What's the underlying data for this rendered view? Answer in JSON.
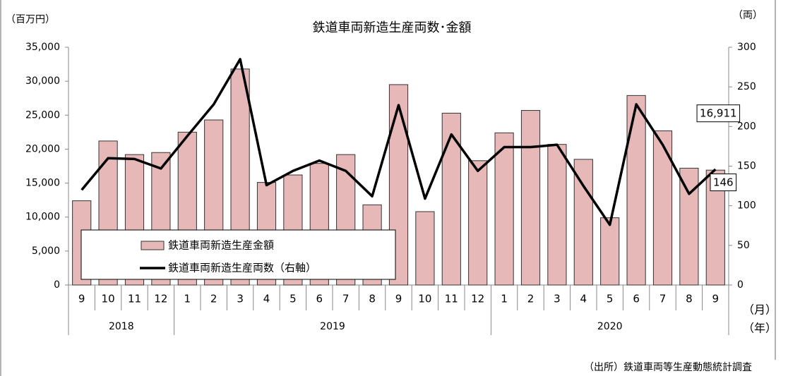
{
  "chart_data": {
    "type": "bar-line",
    "title": "鉄道車両新造生産両数･金額",
    "y_label": "（百万円）",
    "y2_label": "（両）",
    "x_label": "（月）",
    "x_group_label": "（年）",
    "source": "（出所）鉄道車両等生産動態統計調査",
    "categories": [
      "9",
      "10",
      "11",
      "12",
      "1",
      "2",
      "3",
      "4",
      "5",
      "6",
      "7",
      "8",
      "9",
      "10",
      "11",
      "12",
      "1",
      "2",
      "3",
      "4",
      "5",
      "6",
      "7",
      "8",
      "9"
    ],
    "years": [
      "2018",
      "2019",
      "2020"
    ],
    "series": [
      {
        "name": "鉄道車両新造生産金額",
        "type": "bar",
        "color": "#e6b8b7",
        "values": [
          12400,
          21200,
          19200,
          19500,
          22500,
          24300,
          31800,
          15100,
          16200,
          17900,
          19200,
          11800,
          29500,
          10800,
          25300,
          18300,
          22400,
          25700,
          20700,
          18500,
          9900,
          27900,
          22700,
          17200,
          16911
        ],
        "value_labels": [
          null,
          null,
          null,
          null,
          null,
          null,
          null,
          null,
          null,
          null,
          null,
          null,
          null,
          null,
          null,
          null,
          null,
          null,
          null,
          null,
          null,
          null,
          null,
          null,
          "16,911"
        ]
      },
      {
        "name": "鉄道車両新造生産両数（右軸）",
        "type": "line",
        "color": "#000000",
        "axis": "y2",
        "values": [
          120,
          160,
          159,
          147,
          188,
          228,
          285,
          126,
          144,
          157,
          144,
          112,
          227,
          109,
          190,
          144,
          174,
          174,
          177,
          125,
          76,
          228,
          177,
          115,
          146
        ],
        "value_labels": [
          null,
          null,
          null,
          null,
          null,
          null,
          null,
          null,
          null,
          null,
          null,
          null,
          null,
          null,
          null,
          null,
          null,
          null,
          null,
          null,
          null,
          null,
          null,
          null,
          "146"
        ]
      }
    ],
    "ylim": [
      0,
      35000
    ],
    "yticks": [
      0,
      {
        "value": 5000,
        "label": "5,000"
      },
      {
        "value": 10000,
        "label": "10,000"
      },
      {
        "value": 15000,
        "label": "15,000"
      },
      {
        "value": 20000,
        "label": "20,000"
      },
      {
        "value": 25000,
        "label": "25,000"
      },
      {
        "value": 30000,
        "label": "30,000"
      },
      {
        "value": 35000,
        "label": "35,000"
      }
    ],
    "y2lim": [
      0,
      300
    ],
    "y2ticks": [
      0,
      50,
      100,
      150,
      200,
      250,
      300
    ]
  }
}
